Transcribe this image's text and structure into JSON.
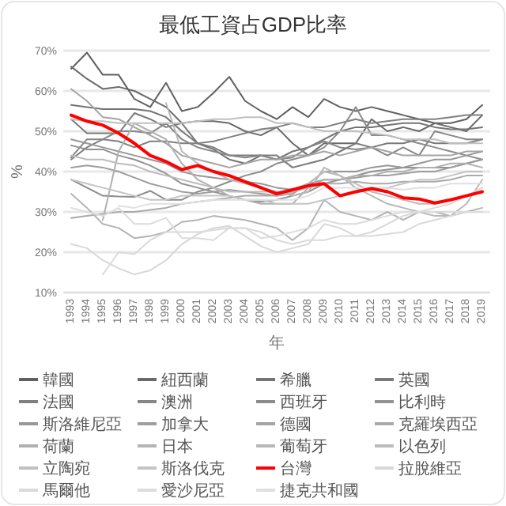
{
  "chart_data": {
    "type": "line",
    "title": "最低工資占GDP比率",
    "xlabel": "年",
    "ylabel": "%",
    "categories": [
      "1993",
      "1994",
      "1995",
      "1996",
      "1997",
      "1998",
      "1999",
      "2000",
      "2001",
      "2002",
      "2003",
      "2004",
      "2005",
      "2006",
      "2007",
      "2008",
      "2009",
      "2010",
      "2011",
      "2012",
      "2013",
      "2014",
      "2015",
      "2016",
      "2017",
      "2018",
      "2019"
    ],
    "series": [
      {
        "name": "韓國",
        "color": "#606060",
        "values": [
          65.5,
          69.5,
          64,
          64,
          58,
          56,
          62,
          55,
          56,
          59.5,
          63.5,
          57.5,
          55,
          53,
          56,
          53.5,
          58,
          56,
          55,
          56,
          55,
          54,
          53,
          52,
          52,
          53,
          56.5
        ]
      },
      {
        "name": "紐西蘭",
        "color": "#6a6a6a",
        "values": [
          66,
          63,
          60.5,
          61,
          60,
          58,
          56,
          52,
          52.5,
          52.5,
          52,
          50,
          49,
          51,
          47,
          44,
          47,
          47,
          47,
          53,
          50,
          51,
          50,
          52,
          51,
          50,
          54
        ]
      },
      {
        "name": "希臘",
        "color": "#747474",
        "values": [
          56.5,
          56,
          55.5,
          55.5,
          55.5,
          55,
          53.5,
          50,
          47,
          45.5,
          43,
          42,
          44,
          43,
          45,
          46,
          48,
          50,
          51,
          51,
          51.5,
          52,
          52,
          51,
          50.5,
          50.5,
          51
        ]
      },
      {
        "name": "英國",
        "color": "#7a7a7a",
        "values": [
          53,
          49.5,
          49.5,
          49.5,
          54.5,
          53,
          51,
          52,
          47,
          46,
          44,
          44,
          44,
          44,
          41,
          42,
          43,
          45,
          47,
          46,
          47,
          47,
          48,
          47,
          47,
          47,
          48
        ]
      },
      {
        "name": "法國",
        "color": "#808080",
        "values": [
          43,
          46,
          48,
          47.5,
          46,
          47.5,
          47.5,
          47,
          47,
          47.5,
          48.5,
          49.5,
          50.5,
          51,
          52,
          51,
          51,
          52,
          53,
          52,
          52.5,
          53,
          53,
          53,
          53.5,
          54,
          54
        ]
      },
      {
        "name": "澳洲",
        "color": "#868686",
        "values": [
          43.5,
          48,
          48,
          50,
          50,
          49.5,
          52,
          48,
          46,
          45,
          44,
          43.5,
          44,
          43,
          43.5,
          46,
          47.5,
          46,
          45.5,
          46,
          44,
          46,
          44,
          50,
          49,
          48,
          48
        ]
      },
      {
        "name": "西班牙",
        "color": "#8c8c8c",
        "values": [
          38,
          36,
          34,
          33.8,
          33.7,
          35.2,
          33,
          33,
          35,
          36,
          37.5,
          39,
          40,
          42,
          43,
          44,
          46,
          50,
          56,
          49,
          49,
          48,
          47,
          46,
          45,
          44,
          43
        ]
      },
      {
        "name": "比利時",
        "color": "#929292",
        "values": [
          46.5,
          45.5,
          45.5,
          44,
          43,
          41.5,
          39.5,
          37,
          36,
          35,
          34,
          33,
          32.5,
          33,
          34,
          35,
          37,
          38,
          39,
          40,
          40.5,
          41,
          41,
          41,
          41,
          42,
          43
        ]
      },
      {
        "name": "斯洛維尼亞",
        "color": "#989898",
        "values": [
          48,
          47,
          46,
          45,
          44,
          43,
          42,
          40,
          39,
          38.5,
          38,
          37.5,
          37,
          36,
          35.5,
          37,
          40,
          40,
          40,
          41,
          41.5,
          41,
          42,
          43,
          43,
          44,
          45
        ]
      },
      {
        "name": "加拿大",
        "color": "#9e9e9e",
        "values": [
          41,
          41.5,
          41,
          40,
          38.5,
          37,
          36,
          35,
          34.5,
          35,
          35.5,
          35,
          34.5,
          34,
          34.5,
          37,
          38,
          38,
          38.5,
          39,
          39,
          39.5,
          40,
          40,
          41,
          42,
          43
        ]
      },
      {
        "name": "德國",
        "color": "#a4a4a4",
        "values": [
          60.5,
          57.5,
          53.5,
          53,
          51,
          49,
          47,
          44,
          43,
          42,
          41,
          42,
          43,
          43,
          44,
          44,
          45,
          44,
          45,
          46,
          45,
          44,
          44,
          44,
          44,
          45,
          45
        ]
      },
      {
        "name": "克羅埃西亞",
        "color": "#aaaaaa",
        "values": [
          28.5,
          29,
          29.5,
          30,
          30,
          30.5,
          31,
          32,
          32.5,
          33,
          33.5,
          34,
          34,
          34,
          35,
          36,
          37,
          37,
          37.5,
          37,
          37,
          37.5,
          37.5,
          37.5,
          38,
          39,
          39
        ]
      },
      {
        "name": "荷蘭",
        "color": "#b0b0b0",
        "values": [
          null,
          null,
          28,
          45,
          52,
          50,
          48,
          42,
          38,
          36,
          34,
          33,
          32,
          32,
          32,
          36,
          38,
          38,
          39,
          39,
          40,
          40,
          41,
          41,
          42,
          42,
          41
        ]
      },
      {
        "name": "日本",
        "color": "#b4b4b4",
        "values": [
          34.5,
          31,
          27,
          26,
          23.5,
          24,
          25,
          27.5,
          28,
          29,
          28.5,
          28,
          27,
          26,
          23,
          26,
          33,
          30,
          29,
          28,
          30,
          28,
          30,
          30,
          29,
          30,
          31
        ]
      },
      {
        "name": "葡萄牙",
        "color": "#b8b8b8",
        "values": [
          null,
          null,
          null,
          null,
          null,
          null,
          57,
          45,
          42,
          40,
          38,
          37,
          36,
          35,
          34,
          35,
          41,
          39,
          36,
          34,
          32,
          31,
          30,
          29,
          29,
          32,
          38
        ]
      },
      {
        "name": "以色列",
        "color": "#bcbcbc",
        "values": [
          44,
          43,
          43,
          42,
          41.5,
          40,
          39,
          38,
          37,
          36,
          35,
          35,
          35,
          35,
          35,
          37,
          40,
          39,
          37,
          35,
          34,
          33,
          32,
          32,
          33,
          34,
          35
        ]
      },
      {
        "name": "立陶宛",
        "color": "#c0c0c0",
        "values": [
          53,
          52.5,
          52.5,
          52,
          52,
          52,
          52,
          52,
          52.5,
          53,
          53,
          53.5,
          53.5,
          52,
          52,
          51,
          50,
          50,
          50,
          49.5,
          49,
          48,
          48,
          48,
          47,
          47,
          47
        ]
      },
      {
        "name": "斯洛伐克",
        "color": "#c4c4c4",
        "values": [
          38,
          37,
          36,
          35,
          34,
          33,
          33,
          34,
          34,
          34,
          34,
          33,
          33,
          32,
          32,
          32,
          33,
          34,
          35,
          36,
          36,
          37,
          38,
          38,
          39,
          40,
          40
        ]
      },
      {
        "name": "台灣",
        "color": "#ff0000",
        "values": [
          54,
          52.5,
          51.5,
          49.5,
          47,
          44,
          42.5,
          40.5,
          41.5,
          40,
          39,
          37.5,
          36,
          34.5,
          35.5,
          36.5,
          37,
          34,
          35,
          35.8,
          35,
          33.5,
          33.2,
          32.2,
          33,
          34,
          35
        ]
      },
      {
        "name": "拉脫維亞",
        "color": "#d8d8d8",
        "values": [
          22,
          21,
          18,
          16,
          14.5,
          15.5,
          18,
          22,
          24.5,
          26,
          26.5,
          24,
          21.5,
          20,
          21,
          22,
          27,
          26,
          24,
          25,
          27,
          29,
          30,
          31,
          32,
          34,
          36
        ]
      },
      {
        "name": "馬爾他",
        "color": "#dadada",
        "values": [
          null,
          null,
          14.5,
          20,
          19.5,
          23,
          25,
          25,
          25,
          25.5,
          26,
          26,
          25,
          23,
          22,
          23,
          23,
          24,
          24,
          24,
          24.5,
          25,
          27,
          28,
          29,
          30,
          30
        ]
      },
      {
        "name": "愛沙尼亞",
        "color": "#dcdcdc",
        "values": [
          31,
          30,
          29,
          31,
          27,
          27,
          28.5,
          23.5,
          23.5,
          23,
          26,
          26,
          23.5,
          24,
          25,
          26,
          28,
          27,
          27,
          28,
          29,
          30,
          30,
          30,
          30,
          30,
          30
        ]
      },
      {
        "name": "捷克共和國",
        "color": "#e0e0e0",
        "values": [
          null,
          null,
          null,
          31.5,
          31,
          32,
          32,
          32,
          32.5,
          33,
          33,
          33,
          33,
          33,
          33,
          34,
          36,
          36,
          36,
          36,
          36,
          35.5,
          36,
          36,
          37,
          37,
          37
        ]
      }
    ],
    "ylim": [
      10,
      70
    ],
    "yticks": [
      {
        "value": 10,
        "label": "10%"
      },
      {
        "value": 20,
        "label": "20%"
      },
      {
        "value": 30,
        "label": "30%"
      },
      {
        "value": 40,
        "label": "40%"
      },
      {
        "value": 50,
        "label": "50%"
      },
      {
        "value": 60,
        "label": "60%"
      },
      {
        "value": 70,
        "label": "70%"
      }
    ],
    "grid": "y",
    "legend": "bottom"
  }
}
